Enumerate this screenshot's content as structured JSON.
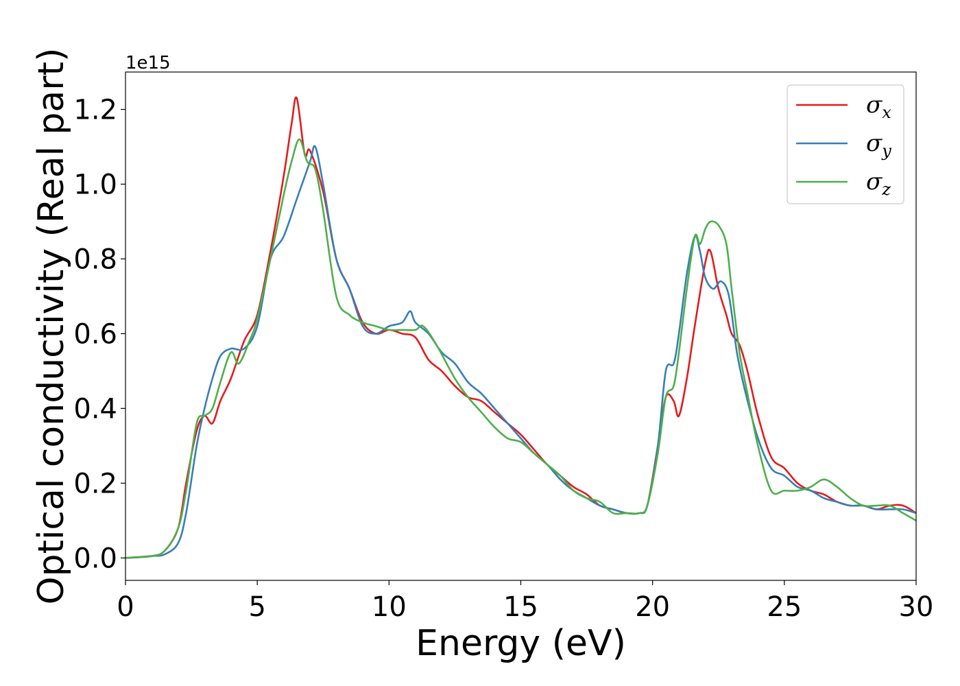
{
  "chart_data": {
    "type": "line",
    "xlabel": "Energy (eV)",
    "ylabel": "Optical conductivity (Real part)",
    "y_offset_label": "1e15",
    "xlim": [
      0,
      30
    ],
    "ylim": [
      -0.06,
      1.3
    ],
    "x_ticks": [
      0,
      5,
      10,
      15,
      20,
      25,
      30
    ],
    "y_ticks": [
      0.0,
      0.2,
      0.4,
      0.6,
      0.8,
      1.0,
      1.2
    ],
    "x_tick_labels": [
      "0",
      "5",
      "10",
      "15",
      "20",
      "25",
      "30"
    ],
    "y_tick_labels": [
      "0.0",
      "0.2",
      "0.4",
      "0.6",
      "0.8",
      "1.0",
      "1.2"
    ],
    "grid": false,
    "legend_position": "top-right",
    "series": [
      {
        "name": "σx",
        "symbol": "σ",
        "subscript": "x",
        "color": "#e41a1c",
        "x": [
          0,
          1,
          1.5,
          2,
          2.3,
          2.7,
          3.0,
          3.3,
          3.6,
          4.0,
          4.5,
          5.0,
          5.5,
          6.0,
          6.3,
          6.5,
          6.8,
          7.0,
          7.5,
          8.0,
          8.5,
          9.0,
          9.5,
          10.0,
          10.5,
          11.0,
          11.5,
          12.0,
          12.5,
          13.0,
          13.5,
          14.0,
          14.5,
          15.0,
          15.5,
          16.0,
          16.5,
          17.0,
          17.5,
          18.0,
          18.5,
          19.0,
          19.5,
          19.8,
          20.2,
          20.5,
          20.8,
          21.0,
          21.3,
          21.6,
          22.0,
          22.2,
          22.5,
          22.8,
          23.0,
          23.3,
          23.6,
          24.0,
          24.5,
          25.0,
          25.5,
          26.0,
          26.5,
          27.0,
          27.5,
          28.0,
          28.5,
          29.0,
          29.5,
          30.0
        ],
        "y": [
          0.0,
          0.005,
          0.02,
          0.08,
          0.2,
          0.34,
          0.38,
          0.36,
          0.42,
          0.48,
          0.58,
          0.65,
          0.82,
          1.02,
          1.16,
          1.23,
          1.08,
          1.09,
          0.98,
          0.8,
          0.72,
          0.63,
          0.6,
          0.61,
          0.6,
          0.59,
          0.53,
          0.5,
          0.46,
          0.43,
          0.42,
          0.39,
          0.36,
          0.33,
          0.29,
          0.25,
          0.22,
          0.19,
          0.17,
          0.14,
          0.13,
          0.12,
          0.12,
          0.14,
          0.3,
          0.43,
          0.42,
          0.38,
          0.48,
          0.62,
          0.79,
          0.82,
          0.72,
          0.65,
          0.6,
          0.57,
          0.5,
          0.38,
          0.27,
          0.24,
          0.2,
          0.18,
          0.17,
          0.15,
          0.14,
          0.14,
          0.13,
          0.14,
          0.14,
          0.12
        ]
      },
      {
        "name": "σy",
        "symbol": "σ",
        "subscript": "y",
        "color": "#377eb8",
        "x": [
          0,
          1,
          1.5,
          2,
          2.3,
          2.7,
          3.0,
          3.3,
          3.6,
          4.0,
          4.5,
          5.0,
          5.5,
          6.0,
          6.5,
          7.0,
          7.2,
          7.5,
          8.0,
          8.5,
          9.0,
          9.5,
          10.0,
          10.5,
          10.8,
          11.0,
          11.5,
          12.0,
          12.5,
          13.0,
          13.5,
          14.0,
          14.5,
          15.0,
          15.5,
          16.0,
          16.5,
          17.0,
          17.5,
          18.0,
          18.5,
          19.0,
          19.5,
          19.8,
          20.2,
          20.5,
          20.8,
          21.0,
          21.3,
          21.6,
          21.8,
          22.0,
          22.3,
          22.6,
          22.9,
          23.2,
          23.5,
          24.0,
          24.5,
          25.0,
          25.5,
          26.0,
          26.5,
          27.0,
          27.5,
          28.0,
          28.5,
          29.0,
          29.5,
          30.0
        ],
        "y": [
          0.0,
          0.005,
          0.01,
          0.04,
          0.12,
          0.3,
          0.4,
          0.48,
          0.54,
          0.56,
          0.56,
          0.62,
          0.8,
          0.86,
          0.96,
          1.06,
          1.1,
          1.0,
          0.8,
          0.72,
          0.62,
          0.6,
          0.62,
          0.63,
          0.66,
          0.63,
          0.6,
          0.55,
          0.52,
          0.47,
          0.44,
          0.4,
          0.36,
          0.32,
          0.28,
          0.25,
          0.21,
          0.18,
          0.16,
          0.14,
          0.13,
          0.12,
          0.12,
          0.14,
          0.3,
          0.5,
          0.52,
          0.6,
          0.76,
          0.86,
          0.82,
          0.75,
          0.72,
          0.74,
          0.7,
          0.55,
          0.45,
          0.32,
          0.24,
          0.22,
          0.19,
          0.18,
          0.16,
          0.15,
          0.14,
          0.14,
          0.13,
          0.13,
          0.13,
          0.12
        ]
      },
      {
        "name": "σz",
        "symbol": "σ",
        "subscript": "z",
        "color": "#4daf4a",
        "x": [
          0,
          1,
          1.5,
          2,
          2.3,
          2.7,
          3.0,
          3.3,
          3.6,
          4.0,
          4.3,
          4.7,
          5.0,
          5.5,
          6.0,
          6.3,
          6.6,
          6.9,
          7.2,
          7.5,
          8.0,
          8.5,
          9.0,
          9.5,
          10.0,
          10.5,
          11.0,
          11.3,
          11.8,
          12.5,
          13.0,
          13.5,
          14.0,
          14.5,
          15.0,
          15.5,
          16.0,
          16.5,
          17.0,
          17.5,
          18.0,
          18.5,
          19.0,
          19.5,
          19.8,
          20.2,
          20.5,
          20.8,
          21.0,
          21.3,
          21.6,
          21.8,
          22.0,
          22.2,
          22.5,
          22.8,
          23.0,
          23.3,
          23.6,
          24.0,
          24.5,
          25.0,
          25.5,
          26.0,
          26.5,
          27.0,
          27.5,
          28.0,
          28.5,
          29.0,
          29.5,
          30.0
        ],
        "y": [
          0.0,
          0.005,
          0.02,
          0.08,
          0.18,
          0.36,
          0.38,
          0.4,
          0.47,
          0.55,
          0.52,
          0.58,
          0.64,
          0.8,
          0.97,
          1.06,
          1.12,
          1.06,
          1.04,
          0.93,
          0.7,
          0.65,
          0.63,
          0.62,
          0.61,
          0.61,
          0.61,
          0.62,
          0.57,
          0.48,
          0.43,
          0.39,
          0.35,
          0.32,
          0.31,
          0.28,
          0.25,
          0.22,
          0.18,
          0.16,
          0.15,
          0.12,
          0.12,
          0.12,
          0.14,
          0.28,
          0.43,
          0.46,
          0.55,
          0.72,
          0.86,
          0.84,
          0.88,
          0.9,
          0.89,
          0.84,
          0.72,
          0.55,
          0.44,
          0.3,
          0.18,
          0.18,
          0.18,
          0.19,
          0.21,
          0.19,
          0.16,
          0.14,
          0.14,
          0.14,
          0.12,
          0.1
        ]
      }
    ]
  }
}
